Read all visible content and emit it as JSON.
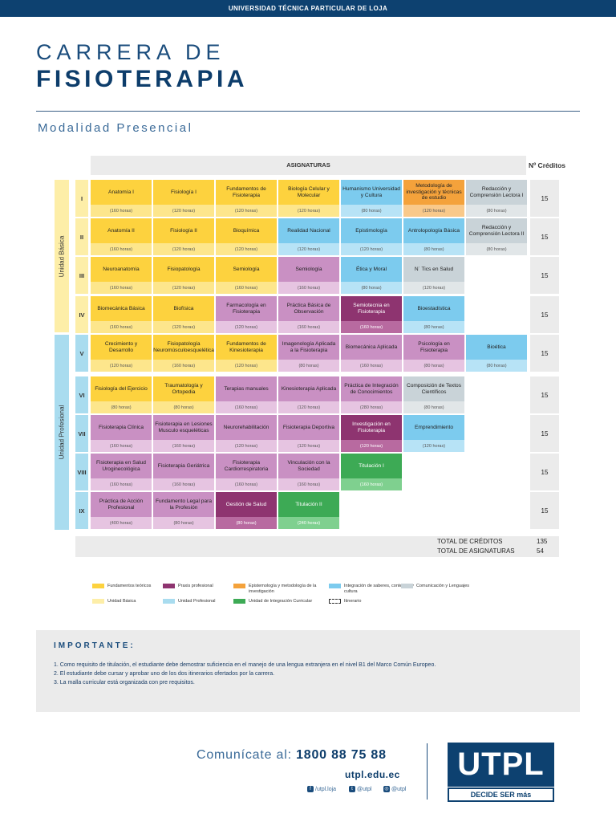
{
  "header": {
    "university": "UNIVERSIDAD TÉCNICA PARTICULAR DE LOJA",
    "title_line1": "CARRERA DE",
    "title_line2": "FISIOTERAPIA",
    "modality": "Modalidad Presencial"
  },
  "colors": {
    "fundamentos": [
      "#fdd23e",
      "#fde68c"
    ],
    "praxis": [
      "#c990c3",
      "#e6c4e1"
    ],
    "praxis_dark": [
      "#8e3470",
      "#b86aa0"
    ],
    "epistemologia": [
      "#f4a23b",
      "#f9c98a"
    ],
    "integracion": [
      "#7ccbee",
      "#b7e3f6"
    ],
    "comunicacion": [
      "#c9d3d8",
      "#e1e6e8"
    ],
    "titulacion": [
      "#3daa55",
      "#7fd08f"
    ],
    "unidad_basica": "#fdeea8",
    "unidad_profesional": "#a9dcef"
  },
  "grid": {
    "asignaturas_label": "ASIGNATURAS",
    "creditos_label": "Nº Créditos",
    "units": [
      {
        "label": "Unidad Básica",
        "type": "unidad_basica"
      },
      {
        "label": "Unidad Profesional",
        "type": "unidad_profesional"
      }
    ],
    "semesters": [
      {
        "level": "I",
        "credits": "15",
        "courses": [
          [
            "Anatomía I",
            "(160 horas)",
            "fundamentos"
          ],
          [
            "Fisiología I",
            "(120 horas)",
            "fundamentos"
          ],
          [
            "Fundamentos de Fisioterapia",
            "(120 horas)",
            "fundamentos"
          ],
          [
            "Biología Celular y Molecular",
            "(120 horas)",
            "fundamentos"
          ],
          [
            "Humanismo Universidad y Cultura",
            "(80 horas)",
            "integracion"
          ],
          [
            "Metodología de investigación y técnicas de estudio",
            "(120 horas)",
            "epistemologia"
          ],
          [
            "Redacción y Comprensión Lectora I",
            "(80 horas)",
            "comunicacion"
          ]
        ]
      },
      {
        "level": "II",
        "credits": "15",
        "courses": [
          [
            "Anatomía II",
            "(160 horas)",
            "fundamentos"
          ],
          [
            "Fisiología II",
            "(120 horas)",
            "fundamentos"
          ],
          [
            "Bioquímica",
            "(120 horas)",
            "fundamentos"
          ],
          [
            "Realidad Nacional",
            "(120 horas)",
            "integracion"
          ],
          [
            "Epistimología",
            "(120 horas)",
            "integracion"
          ],
          [
            "Antrolopología Básica",
            "(80 horas)",
            "integracion"
          ],
          [
            "Redacción y Comprensión Lectora II",
            "(80 horas)",
            "comunicacion"
          ]
        ]
      },
      {
        "level": "III",
        "credits": "15",
        "courses": [
          [
            "Neuroanatomía",
            "(160 horas)",
            "fundamentos"
          ],
          [
            "Fisiopatología",
            "(120 horas)",
            "fundamentos"
          ],
          [
            "Semiología",
            "(160 horas)",
            "fundamentos"
          ],
          [
            "Semiología",
            "(160 horas)",
            "praxis"
          ],
          [
            "Ética y Moral",
            "(80 horas)",
            "integracion"
          ],
          [
            "N˙ Tics en Salud",
            "(120 horas)",
            "comunicacion"
          ]
        ]
      },
      {
        "level": "IV",
        "credits": "15",
        "courses": [
          [
            "Biomecánica Básica",
            "(160 horas)",
            "fundamentos"
          ],
          [
            "Biofísica",
            "(120 horas)",
            "fundamentos"
          ],
          [
            "Farmacología en Fisioterapia",
            "(120 horas)",
            "praxis"
          ],
          [
            "Práctica Básica de Observación",
            "(160 horas)",
            "praxis"
          ],
          [
            "Semiotecnia en Fisioterapia",
            "(160 horas)",
            "praxis_dark"
          ],
          [
            "Bioestadística",
            "(80 horas)",
            "integracion"
          ]
        ]
      },
      {
        "level": "V",
        "credits": "15",
        "courses": [
          [
            "Crecimiento y Desarrollo",
            "(120 horas)",
            "fundamentos"
          ],
          [
            "Fisiopatología Neuromúsculoesquelética",
            "(160 horas)",
            "fundamentos"
          ],
          [
            "Fundamentos de Kinesioterapia",
            "(120 horas)",
            "fundamentos"
          ],
          [
            "Imagenología Aplicada a la Fisioterapia",
            "(80 horas)",
            "praxis"
          ],
          [
            "Biomecánica Aplicada",
            "(160 horas)",
            "praxis"
          ],
          [
            "Psicología en Fisioterapia",
            "(80 horas)",
            "praxis"
          ],
          [
            "Bioética",
            "(80 horas)",
            "integracion"
          ]
        ]
      },
      {
        "level": "VI",
        "credits": "15",
        "courses": [
          [
            "Fisiología del Ejercicio",
            "(80 horas)",
            "fundamentos"
          ],
          [
            "Traumatología y Ortopedia",
            "(80 horas)",
            "fundamentos"
          ],
          [
            "Terapias manuales",
            "(160 horas)",
            "praxis"
          ],
          [
            "Kinesioterapia Aplicada",
            "(120 horas)",
            "praxis"
          ],
          [
            "Práctica de Integración de Conocimientos",
            "(280 horas)",
            "praxis"
          ],
          [
            "Composición de Textos Científicos",
            "(80 horas)",
            "comunicacion"
          ]
        ]
      },
      {
        "level": "VII",
        "credits": "15",
        "courses": [
          [
            "Fisioterapia Clínica",
            "(160 horas)",
            "praxis"
          ],
          [
            "Fisioterapia en Lesiones Musculo esqueléticas",
            "(160 horas)",
            "praxis"
          ],
          [
            "Neurorehabilitación",
            "(120 horas)",
            "praxis"
          ],
          [
            "Fisioterapia Deportiva",
            "(120 horas)",
            "praxis"
          ],
          [
            "Investigación en Fisioterapia",
            "(120 horas)",
            "praxis_dark"
          ],
          [
            "Emprendimiento",
            "(120 horas)",
            "integracion"
          ]
        ]
      },
      {
        "level": "VIII",
        "credits": "15",
        "courses": [
          [
            "Fisioterapia en Salud Uroginecológica",
            "(160 horas)",
            "praxis"
          ],
          [
            "Fisioterapia Geriátrica",
            "(160 horas)",
            "praxis"
          ],
          [
            "Fisioterapia Cardiorrespiratoria",
            "(160 horas)",
            "praxis"
          ],
          [
            "Vinculación con la Sociedad",
            "(160 horas)",
            "praxis"
          ],
          [
            "Titulación I",
            "(160 horas)",
            "titulacion"
          ]
        ]
      },
      {
        "level": "IX",
        "credits": "15",
        "courses": [
          [
            "Práctica de Acción Profesional",
            "(400 horas)",
            "praxis"
          ],
          [
            "Fundamento Legal para la Profesión",
            "(80 horas)",
            "praxis"
          ],
          [
            "Gestión de Salud",
            "(80 horas)",
            "praxis_dark"
          ],
          [
            "Titulación II",
            "(240 horas)",
            "titulacion"
          ]
        ]
      }
    ],
    "totals": {
      "credits_label": "TOTAL DE CRÉDITOS",
      "credits": "135",
      "subjects_label": "TOTAL DE ASIGNATURAS",
      "subjects": "54"
    }
  },
  "legend": [
    {
      "label": "Fundamentos teóricos",
      "type": "fundamentos"
    },
    {
      "label": "Praxis profesional",
      "type": "praxis_dark"
    },
    {
      "label": "Epistemología y metodología de la investigación",
      "type": "epistemologia"
    },
    {
      "label": "Integración de saberes, contextos y cultura",
      "type": "integracion"
    },
    {
      "label": "Comunicación y Lenguajes",
      "type": "comunicacion"
    },
    {
      "label": "Unidad Básica",
      "type": "unidad_basica"
    },
    {
      "label": "Unidad Profesional",
      "type": "unidad_profesional"
    },
    {
      "label": "Unidad de Integración Curricular",
      "type": "titulacion"
    },
    {
      "label": "Itinerario",
      "type": "itinerario"
    }
  ],
  "important": {
    "title": "IMPORTANTE:",
    "items": [
      "1. Como requisito de titulación, el estudiante debe demostrar suficiencia en el manejo de una lengua extranjera en el nivel B1 del Marco Común Europeo.",
      "2. El estudiante debe cursar y aprobar uno de los dos itinerarios ofertados por la carrera.",
      "3. La malla curricular está organizada con pre requisitos."
    ]
  },
  "footer": {
    "contact_label": "Comunícate al:",
    "phone": "1800 88 75 88",
    "website": "utpl.edu.ec",
    "facebook": "/utpl.loja",
    "twitter": "@utpl",
    "instagram": "@utpl",
    "logo_text": "UTPL",
    "logo_tagline": "DECIDE SER más"
  }
}
